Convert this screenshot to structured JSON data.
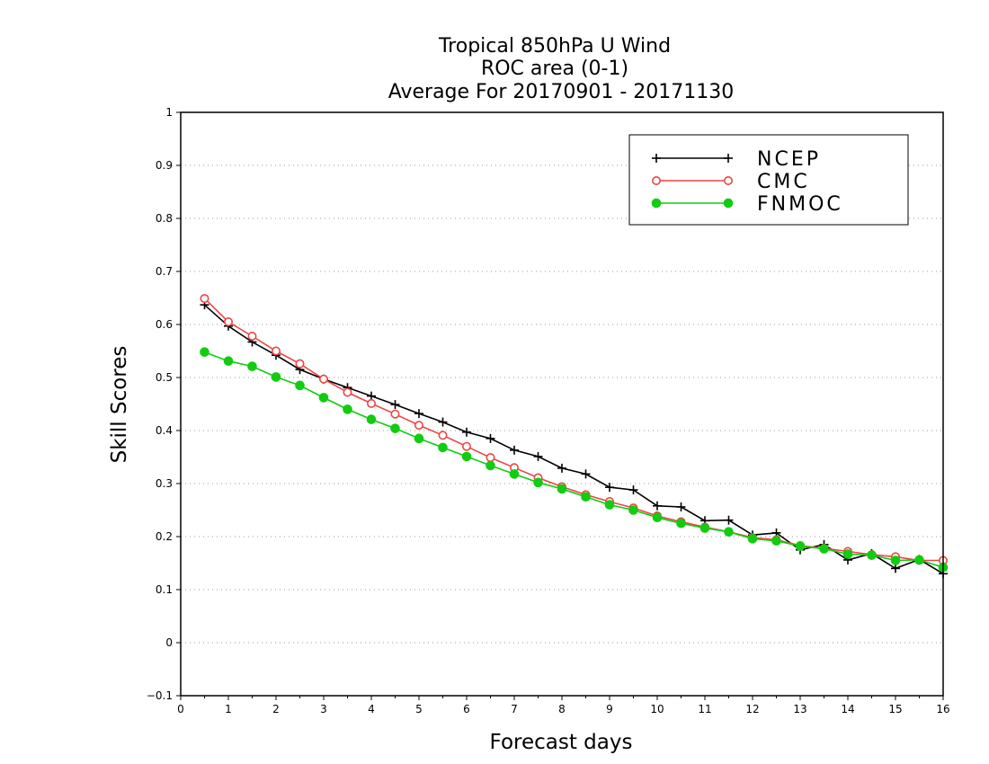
{
  "chart_data": {
    "type": "line",
    "title": [
      "Tropical 850hPa U Wind",
      "ROC area (0-1)",
      "Average For 20170901 - 20171130"
    ],
    "xlabel": "Forecast days",
    "ylabel": "Skill Scores",
    "xlim": [
      0,
      16
    ],
    "ylim": [
      -0.1,
      1
    ],
    "xticks": [
      "0",
      "1",
      "2",
      "3",
      "4",
      "5",
      "6",
      "7",
      "8",
      "9",
      "10",
      "11",
      "12",
      "13",
      "14",
      "15",
      "16"
    ],
    "yticks": [
      "−0.1",
      "0",
      "0.1",
      "0.2",
      "0.3",
      "0.4",
      "0.5",
      "0.6",
      "0.7",
      "0.8",
      "0.9",
      "1"
    ],
    "grid": true,
    "legend_position": "top-right",
    "x": [
      0.5,
      1,
      1.5,
      2,
      2.5,
      3,
      3.5,
      4,
      4.5,
      5,
      5.5,
      6,
      6.5,
      7,
      7.5,
      8,
      8.5,
      9,
      9.5,
      10,
      10.5,
      11,
      11.5,
      12,
      12.5,
      13,
      13.5,
      14,
      14.5,
      15,
      15.5,
      16
    ],
    "series": [
      {
        "name": "NCEP",
        "color": "#000000",
        "marker": "plus",
        "values": [
          0.637,
          0.597,
          0.567,
          0.542,
          0.515,
          0.497,
          0.481,
          0.465,
          0.449,
          0.432,
          0.416,
          0.397,
          0.385,
          0.363,
          0.351,
          0.329,
          0.318,
          0.293,
          0.288,
          0.258,
          0.256,
          0.23,
          0.231,
          0.203,
          0.207,
          0.175,
          0.185,
          0.156,
          0.168,
          0.14,
          0.157,
          0.13
        ]
      },
      {
        "name": "CMC",
        "color": "#ee4444",
        "marker": "open-circle",
        "values": [
          0.649,
          0.605,
          0.578,
          0.55,
          0.526,
          0.497,
          0.472,
          0.451,
          0.431,
          0.41,
          0.391,
          0.37,
          0.349,
          0.33,
          0.311,
          0.294,
          0.279,
          0.266,
          0.254,
          0.239,
          0.228,
          0.218,
          0.209,
          0.198,
          0.194,
          0.183,
          0.178,
          0.172,
          0.166,
          0.162,
          0.155,
          0.155
        ]
      },
      {
        "name": "FNMOC",
        "color": "#11cc11",
        "marker": "filled-circle",
        "values": [
          0.548,
          0.531,
          0.521,
          0.501,
          0.485,
          0.462,
          0.44,
          0.421,
          0.404,
          0.385,
          0.368,
          0.351,
          0.334,
          0.318,
          0.302,
          0.29,
          0.275,
          0.26,
          0.25,
          0.236,
          0.225,
          0.216,
          0.209,
          0.196,
          0.192,
          0.182,
          0.177,
          0.167,
          0.165,
          0.155,
          0.156,
          0.142
        ]
      }
    ]
  }
}
